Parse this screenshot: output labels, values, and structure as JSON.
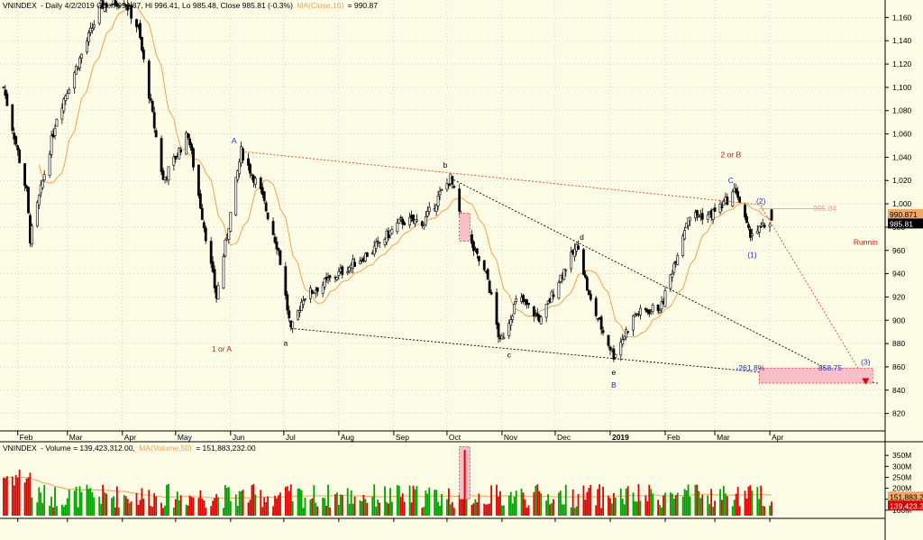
{
  "header": {
    "symbol": "VNINDEX",
    "price_info": "- Daily 4/2/2019 Open 994.87, Hi 996.41, Lo 985.48, Close 985.81 (-0.3%)",
    "ma_label": "MA(Close,15)",
    "ma_value": "= 990.87"
  },
  "volume_header": {
    "symbol": "VNINDEX",
    "volume_info": "- Volume = 139,423,312.00,",
    "ma_label": "MA(Volume,50)",
    "ma_value": "= 151,883,232.00"
  },
  "colors": {
    "background": "#fcfce6",
    "up": "#00a000",
    "down": "#e00000",
    "ma": "#f0a050",
    "grid": "#b0b0b0",
    "trendline_red": "#e04020",
    "trendline_black": "#000000",
    "wave_blue": "#2030d0",
    "wave_red": "#d01010",
    "zone_fill": "#f7c0c8"
  },
  "chart_data": [
    {
      "type": "candlestick",
      "x_axis_months": [
        "Feb",
        "Mar",
        "Apr",
        "May",
        "Jun",
        "Jul",
        "Aug",
        "Sep",
        "Oct",
        "Nov",
        "Dec",
        "2019",
        "Feb",
        "Mar",
        "Apr"
      ],
      "y_ticks": [
        820,
        840,
        860,
        880,
        900,
        920,
        940,
        960,
        980,
        1000,
        1020,
        1040,
        1060,
        1080,
        1100,
        1120,
        1140,
        1160
      ],
      "y_tick_labels": [
        "820",
        "840",
        "860",
        "880",
        "900",
        "920",
        "940",
        "960",
        "980",
        "1,000",
        "1,020",
        "1,040",
        "1,060",
        "1,080",
        "1,100",
        "1,120",
        "1,140",
        "1,160"
      ],
      "ylim": [
        805,
        1175
      ],
      "price_anchors": [
        {
          "x": "2018-01-24",
          "y": 1100
        },
        {
          "x": "2018-02-06",
          "y": 1010
        },
        {
          "x": "2018-02-08",
          "y": 970
        },
        {
          "x": "2018-02-23",
          "y": 1075
        },
        {
          "x": "2018-03-20",
          "y": 1170
        },
        {
          "x": "2018-04-02",
          "y": 1175
        },
        {
          "x": "2018-04-10",
          "y": 1150
        },
        {
          "x": "2018-04-24",
          "y": 1020
        },
        {
          "x": "2018-05-08",
          "y": 1060
        },
        {
          "x": "2018-05-24",
          "y": 920
        },
        {
          "x": "2018-06-07",
          "y": 1045
        },
        {
          "x": "2018-06-18",
          "y": 1010
        },
        {
          "x": "2018-06-28",
          "y": 960
        },
        {
          "x": "2018-07-05",
          "y": 890
        },
        {
          "x": "2018-07-12",
          "y": 920
        },
        {
          "x": "2018-08-01",
          "y": 940
        },
        {
          "x": "2018-08-20",
          "y": 960
        },
        {
          "x": "2018-09-05",
          "y": 985
        },
        {
          "x": "2018-09-18",
          "y": 985
        },
        {
          "x": "2018-09-28",
          "y": 1010
        },
        {
          "x": "2018-10-03",
          "y": 1022
        },
        {
          "x": "2018-10-10",
          "y": 980
        },
        {
          "x": "2018-10-24",
          "y": 935
        },
        {
          "x": "2018-10-31",
          "y": 880
        },
        {
          "x": "2018-11-10",
          "y": 920
        },
        {
          "x": "2018-11-23",
          "y": 900
        },
        {
          "x": "2018-12-03",
          "y": 935
        },
        {
          "x": "2018-12-14",
          "y": 965
        },
        {
          "x": "2018-12-20",
          "y": 920
        },
        {
          "x": "2018-12-28",
          "y": 890
        },
        {
          "x": "2019-01-03",
          "y": 870
        },
        {
          "x": "2019-01-15",
          "y": 905
        },
        {
          "x": "2019-01-30",
          "y": 912
        },
        {
          "x": "2019-02-14",
          "y": 990
        },
        {
          "x": "2019-02-26",
          "y": 990
        },
        {
          "x": "2019-03-06",
          "y": 1000
        },
        {
          "x": "2019-03-13",
          "y": 1012
        },
        {
          "x": "2019-03-20",
          "y": 975
        },
        {
          "x": "2019-03-27",
          "y": 978
        },
        {
          "x": "2019-04-02",
          "y": 986
        }
      ],
      "volume_y_ticks": [
        100,
        150,
        200,
        250,
        300,
        350
      ],
      "volume_tick_labels": [
        "100M",
        "150M",
        "200M",
        "250M",
        "300M",
        "350M"
      ],
      "volume_ylim": [
        75,
        400
      ],
      "price_labels": [
        {
          "text": "990.871",
          "y": 990.87,
          "bg": "#f2a862",
          "fg": "#000000"
        },
        {
          "text": "985.81",
          "y": 985.81,
          "bg": "#000000",
          "fg": "#ffffff"
        }
      ],
      "volume_labels": [
        {
          "text": "151,883.2",
          "y": 151.9,
          "bg": "#f2a862",
          "fg": "#000000"
        },
        {
          "text": "139,423.3",
          "y": 139.4,
          "bg": "#e00000",
          "fg": "#ffffff"
        }
      ],
      "annotations": [
        {
          "text": "A",
          "x": "2018-06-03",
          "y": 1052,
          "color": "#2030d0"
        },
        {
          "text": "1 or A",
          "x": "2018-05-27",
          "y": 873,
          "color": "#d01010"
        },
        {
          "text": "a",
          "x": "2018-07-02",
          "y": 878,
          "color": "#000000"
        },
        {
          "text": "b",
          "x": "2018-09-30",
          "y": 1031,
          "color": "#000000"
        },
        {
          "text": "c",
          "x": "2018-11-05",
          "y": 868,
          "color": "#000000"
        },
        {
          "text": "d",
          "x": "2018-12-16",
          "y": 969,
          "color": "#000000"
        },
        {
          "text": "e",
          "x": "2019-01-03",
          "y": 853,
          "color": "#000000"
        },
        {
          "text": "B",
          "x": "2019-01-03",
          "y": 842,
          "color": "#2030d0"
        },
        {
          "text": "2 or B",
          "x": "2019-03-10",
          "y": 1040,
          "color": "#d01010"
        },
        {
          "text": "C",
          "x": "2019-03-10",
          "y": 1018,
          "color": "#2030d0"
        },
        {
          "text": "(2)",
          "x": "2019-03-27",
          "y": 1000,
          "color": "#2030d0"
        },
        {
          "text": "(1)",
          "x": "2019-03-22",
          "y": 954,
          "color": "#2030d0"
        },
        {
          "text": "(3)",
          "x": "2019-05-25",
          "y": 862,
          "color": "#2030d0"
        },
        {
          "text": "995.84",
          "x": "2019-05-02",
          "y": 994,
          "color": "#e0a0b0"
        },
        {
          "text": "-261.8%",
          "x": "2019-03-21",
          "y": 857,
          "color": "#2030d0"
        },
        {
          "text": "858.75",
          "x": "2019-05-05",
          "y": 857,
          "color": "#2030d0"
        },
        {
          "text": "Runnin",
          "x": "2019-05-25",
          "y": 965,
          "color": "#d01010"
        }
      ]
    }
  ]
}
